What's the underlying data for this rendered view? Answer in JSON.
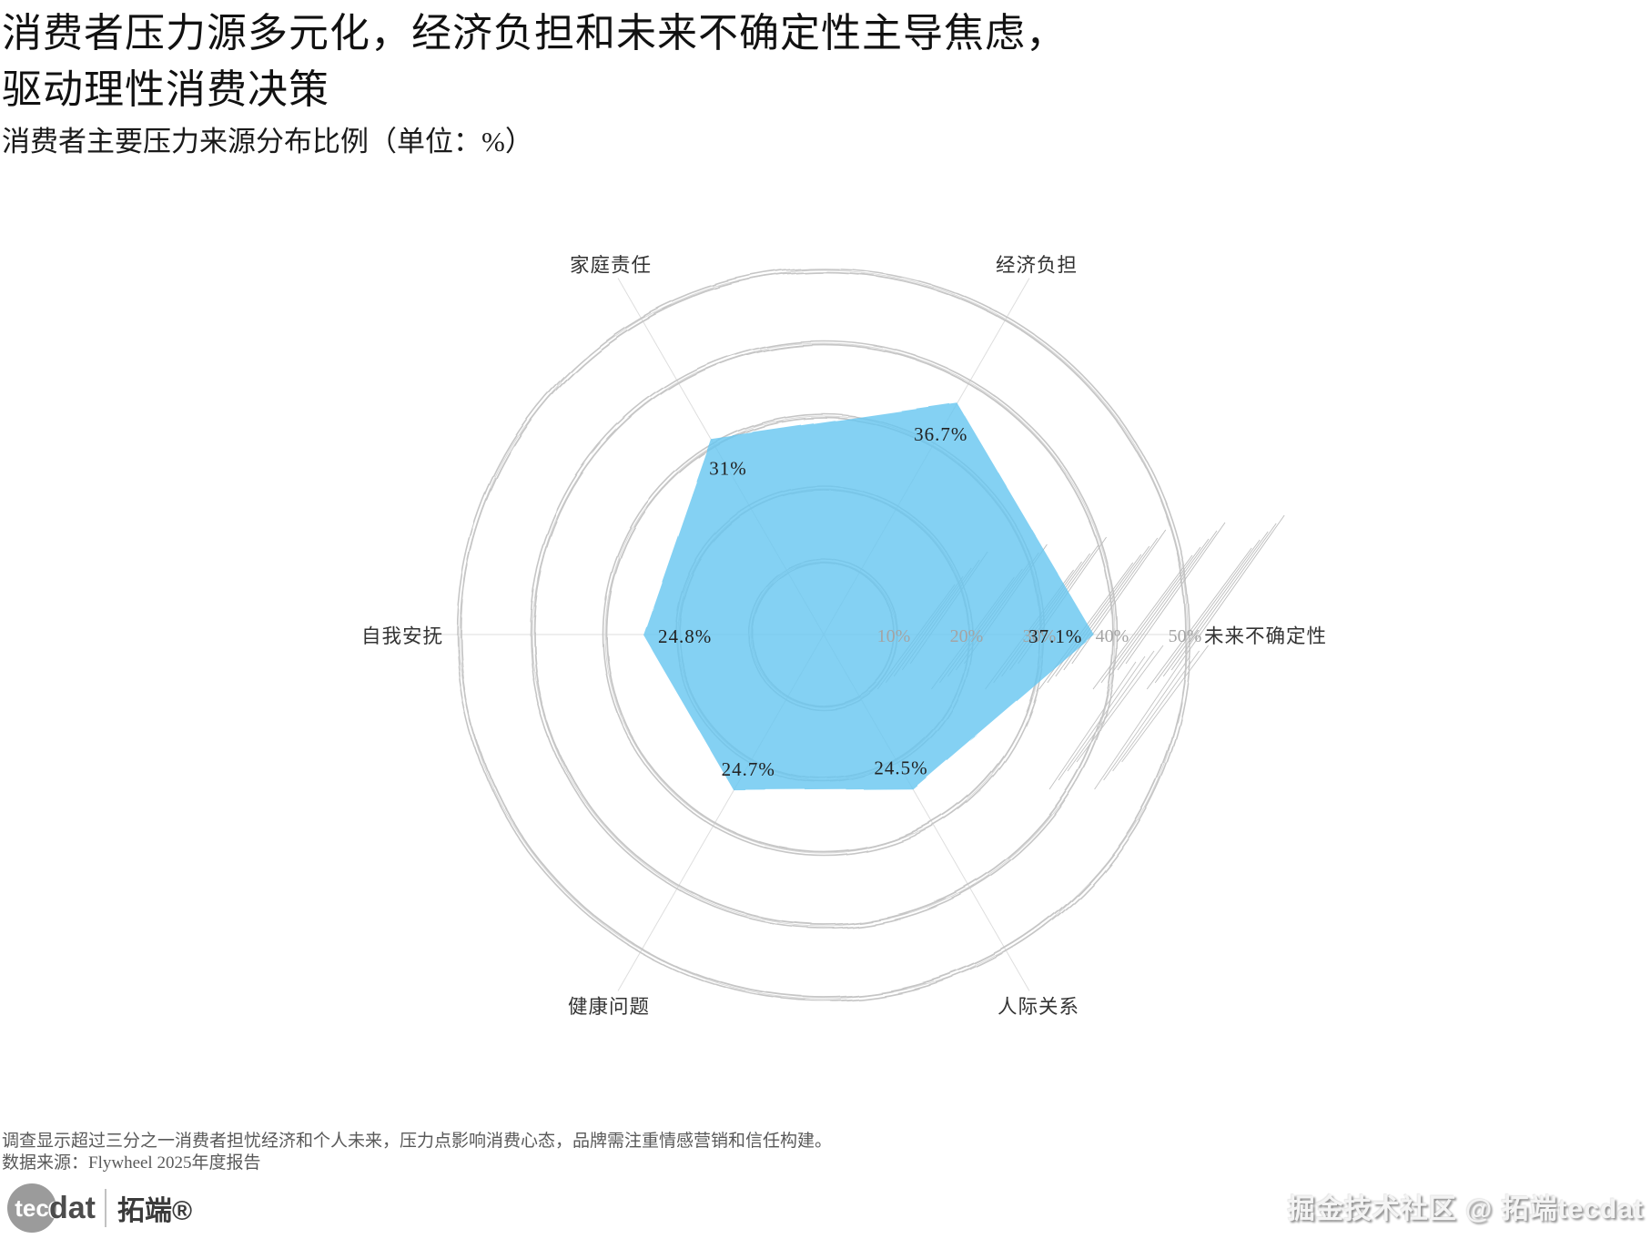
{
  "header": {
    "title_line1": "消费者压力源多元化，经济负担和未来不确定性主导焦虑，",
    "title_line2": "驱动理性消费决策",
    "subtitle": "消费者主要压力来源分布比例（单位：%）"
  },
  "chart_data": {
    "type": "radar",
    "title": "消费者主要压力来源分布比例（单位：%）",
    "categories": [
      "未来不确定性",
      "经济负担",
      "家庭责任",
      "自我安抚",
      "健康问题",
      "人际关系"
    ],
    "angles_deg": [
      0,
      60,
      120,
      180,
      240,
      300
    ],
    "values": [
      37.1,
      36.7,
      31,
      24.8,
      24.7,
      24.5
    ],
    "value_labels": [
      "37.1%",
      "36.7%",
      "31%",
      "24.8%",
      "24.7%",
      "24.5%"
    ],
    "radial_ticks": [
      "10%",
      "20%",
      "30%",
      "40%",
      "50%"
    ],
    "rlim": [
      0,
      50
    ],
    "grid": true,
    "legend": "none",
    "fill_color": "#66c5f0",
    "grid_color": "#c6c6c6",
    "spoke_color": "#dedede",
    "tick_color": "#a4a4a4",
    "value_color": "#222222",
    "axis_label_color": "#333333"
  },
  "footnote": {
    "line1": "调查显示超过三分之一消费者担忧经济和个人未来，压力点影响消费心态，品牌需注重情感营销和信任构建。",
    "line2": "数据来源：Flywheel 2025年度报告"
  },
  "branding": {
    "logo_tec": "tec",
    "logo_dat": "dat",
    "logo_cn": "拓端®",
    "watermark": "掘金技术社区 @ 拓端tecdat"
  }
}
